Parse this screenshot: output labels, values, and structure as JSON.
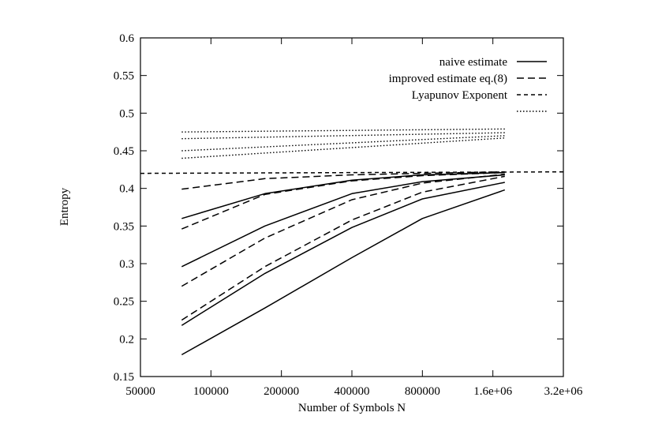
{
  "chart_data": {
    "type": "line",
    "title": "",
    "xlabel": "Number of Symbols N",
    "ylabel": "Entropy",
    "x_scale": "log2",
    "xlim": [
      50000,
      3200000
    ],
    "ylim": [
      0.15,
      0.6
    ],
    "x_ticks": [
      50000,
      100000,
      200000,
      400000,
      800000,
      1600000,
      3200000
    ],
    "x_tick_labels": [
      "50000",
      "100000",
      "200000",
      "400000",
      "800000",
      "1.6e+06",
      "3.2e+06"
    ],
    "y_ticks": [
      0.15,
      0.2,
      0.25,
      0.3,
      0.35,
      0.4,
      0.45,
      0.5,
      0.55,
      0.6
    ],
    "y_tick_labels": [
      "0.15",
      "0.2",
      "0.25",
      "0.3",
      "0.35",
      "0.4",
      "0.45",
      "0.5",
      "0.55",
      "0.6"
    ],
    "grid": false,
    "legend_position": "top-right",
    "legend": [
      {
        "label": "naive estimate",
        "style": "solid"
      },
      {
        "label": "improved estimate eq.(8)",
        "style": "long-dash"
      },
      {
        "label": "Lyapunov Exponent",
        "style": "short-dash"
      },
      {
        "label": "",
        "style": "dotted"
      }
    ],
    "series": [
      {
        "group": "naive estimate",
        "style": "solid",
        "x": [
          75000,
          170000,
          400000,
          800000,
          1800000
        ],
        "y": [
          0.36,
          0.393,
          0.411,
          0.418,
          0.421
        ]
      },
      {
        "group": "naive estimate",
        "style": "solid",
        "x": [
          75000,
          170000,
          400000,
          800000,
          1800000
        ],
        "y": [
          0.296,
          0.35,
          0.393,
          0.409,
          0.418
        ]
      },
      {
        "group": "naive estimate",
        "style": "solid",
        "x": [
          75000,
          170000,
          400000,
          800000,
          1800000
        ],
        "y": [
          0.218,
          0.287,
          0.348,
          0.386,
          0.408
        ]
      },
      {
        "group": "naive estimate",
        "style": "solid",
        "x": [
          75000,
          170000,
          400000,
          800000,
          1800000
        ],
        "y": [
          0.179,
          0.241,
          0.308,
          0.36,
          0.398
        ]
      },
      {
        "group": "improved estimate eq.(8)",
        "style": "long-dash",
        "x": [
          75000,
          170000,
          400000,
          800000,
          1800000
        ],
        "y": [
          0.399,
          0.413,
          0.418,
          0.42,
          0.422
        ]
      },
      {
        "group": "improved estimate eq.(8)",
        "style": "long-dash",
        "x": [
          75000,
          170000,
          400000,
          800000,
          1800000
        ],
        "y": [
          0.346,
          0.392,
          0.41,
          0.417,
          0.421
        ]
      },
      {
        "group": "improved estimate eq.(8)",
        "style": "long-dash",
        "x": [
          75000,
          170000,
          400000,
          800000,
          1800000
        ],
        "y": [
          0.27,
          0.334,
          0.385,
          0.407,
          0.419
        ]
      },
      {
        "group": "improved estimate eq.(8)",
        "style": "long-dash",
        "x": [
          75000,
          170000,
          400000,
          800000,
          1800000
        ],
        "y": [
          0.225,
          0.296,
          0.358,
          0.395,
          0.416
        ]
      },
      {
        "group": "Lyapunov Exponent",
        "style": "short-dash",
        "x": [
          50000,
          3200000
        ],
        "y": [
          0.42,
          0.422
        ]
      },
      {
        "group": "dotted",
        "style": "dotted",
        "x": [
          75000,
          1800000
        ],
        "y": [
          0.475,
          0.479
        ]
      },
      {
        "group": "dotted",
        "style": "dotted",
        "x": [
          75000,
          1800000
        ],
        "y": [
          0.466,
          0.474
        ]
      },
      {
        "group": "dotted",
        "style": "dotted",
        "x": [
          75000,
          1800000
        ],
        "y": [
          0.45,
          0.47
        ]
      },
      {
        "group": "dotted",
        "style": "dotted",
        "x": [
          75000,
          1800000
        ],
        "y": [
          0.44,
          0.467
        ]
      }
    ]
  }
}
